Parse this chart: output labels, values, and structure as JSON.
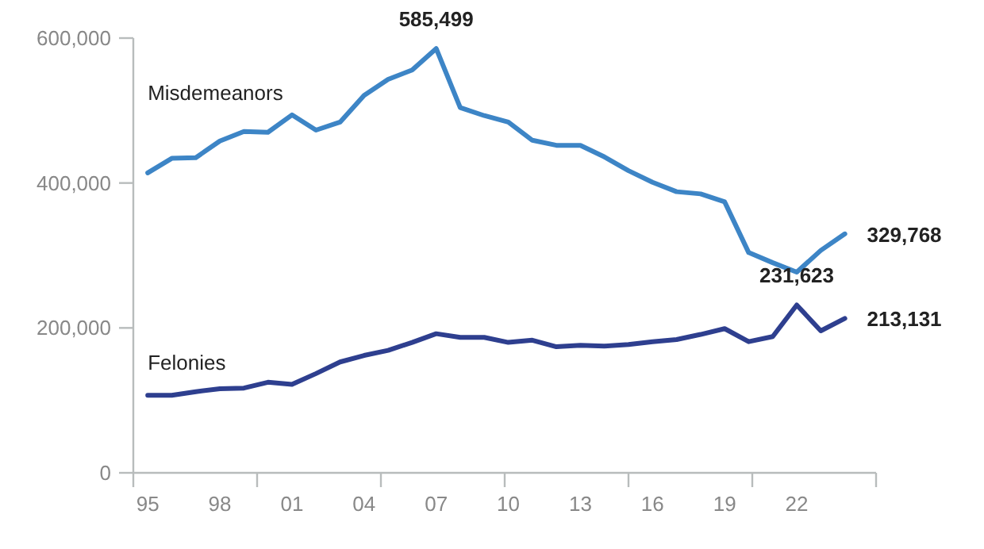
{
  "chart_data": {
    "type": "line",
    "x": [
      1995,
      1996,
      1997,
      1998,
      1999,
      2000,
      2001,
      2002,
      2003,
      2004,
      2005,
      2006,
      2007,
      2008,
      2009,
      2010,
      2011,
      2012,
      2013,
      2014,
      2015,
      2016,
      2017,
      2018,
      2019,
      2020,
      2021,
      2022,
      2023,
      2024
    ],
    "series": [
      {
        "name": "Misdemeanors",
        "color": "#3d85c6",
        "values": [
          414000,
          434000,
          435000,
          458000,
          471000,
          470000,
          494000,
          473000,
          484000,
          521000,
          543000,
          556000,
          585499,
          504000,
          493000,
          484000,
          459000,
          452000,
          452000,
          436000,
          417000,
          401000,
          388000,
          385000,
          374000,
          304000,
          290000,
          277000,
          307000,
          329768
        ],
        "value_labels": [
          null,
          null,
          null,
          null,
          null,
          null,
          null,
          null,
          null,
          null,
          null,
          null,
          "585,499",
          null,
          null,
          null,
          null,
          null,
          null,
          null,
          null,
          null,
          null,
          null,
          null,
          null,
          null,
          null,
          null,
          "329,768"
        ]
      },
      {
        "name": "Felonies",
        "color": "#2e3f8f",
        "values": [
          107000,
          107000,
          112000,
          116000,
          117000,
          125000,
          122000,
          137000,
          153000,
          162000,
          169000,
          180000,
          192000,
          187000,
          187000,
          180000,
          183000,
          174000,
          176000,
          175000,
          177000,
          181000,
          184000,
          191000,
          199000,
          181000,
          188000,
          231623,
          196000,
          213131
        ],
        "value_labels": [
          null,
          null,
          null,
          null,
          null,
          null,
          null,
          null,
          null,
          null,
          null,
          null,
          null,
          null,
          null,
          null,
          null,
          null,
          null,
          null,
          null,
          null,
          null,
          null,
          null,
          null,
          null,
          "231,623",
          null,
          "213,131"
        ]
      }
    ],
    "xlim": [
      1994.4,
      2025.3
    ],
    "xticks": [
      {
        "value": 1995,
        "label": "95"
      },
      {
        "value": 1998,
        "label": "98"
      },
      {
        "value": 2001,
        "label": "01"
      },
      {
        "value": 2004,
        "label": "04"
      },
      {
        "value": 2007,
        "label": "07"
      },
      {
        "value": 2010,
        "label": "10"
      },
      {
        "value": 2013,
        "label": "13"
      },
      {
        "value": 2016,
        "label": "16"
      },
      {
        "value": 2019,
        "label": "19"
      },
      {
        "value": 2022,
        "label": "22"
      },
      {
        "value": 1994.4,
        "label": null
      },
      {
        "value": 1999.55,
        "label": null
      },
      {
        "value": 2004.7,
        "label": null
      },
      {
        "value": 2009.85,
        "label": null
      },
      {
        "value": 2015,
        "label": null
      },
      {
        "value": 2020.15,
        "label": null
      },
      {
        "value": 2025.3,
        "label": null
      }
    ],
    "ylim": [
      0,
      600000
    ],
    "yticks": [
      {
        "value": 0,
        "label": "0"
      },
      {
        "value": 200000,
        "label": "200,000"
      },
      {
        "value": 400000,
        "label": "400,000"
      },
      {
        "value": 600000,
        "label": "600,000"
      }
    ],
    "grid": false,
    "legend": false,
    "marker": "none",
    "line_style": "solid"
  }
}
